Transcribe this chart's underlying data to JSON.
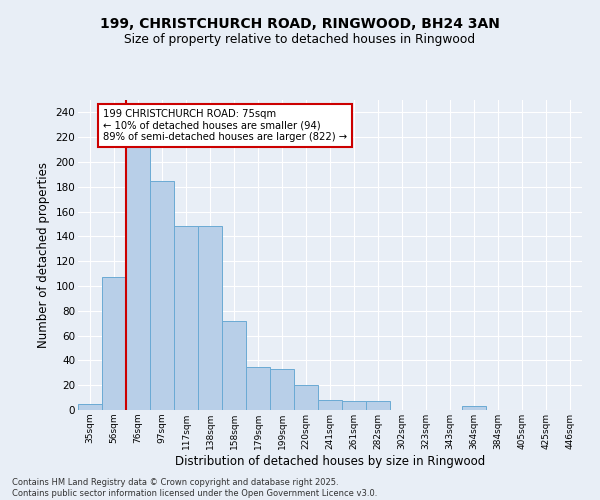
{
  "title_line1": "199, CHRISTCHURCH ROAD, RINGWOOD, BH24 3AN",
  "title_line2": "Size of property relative to detached houses in Ringwood",
  "xlabel": "Distribution of detached houses by size in Ringwood",
  "ylabel": "Number of detached properties",
  "categories": [
    "35sqm",
    "56sqm",
    "76sqm",
    "97sqm",
    "117sqm",
    "138sqm",
    "158sqm",
    "179sqm",
    "199sqm",
    "220sqm",
    "241sqm",
    "261sqm",
    "282sqm",
    "302sqm",
    "323sqm",
    "343sqm",
    "364sqm",
    "384sqm",
    "405sqm",
    "425sqm",
    "446sqm"
  ],
  "values": [
    5,
    107,
    220,
    185,
    148,
    148,
    72,
    35,
    33,
    20,
    8,
    7,
    7,
    0,
    0,
    0,
    3,
    0,
    0,
    0,
    0
  ],
  "bar_color": "#b8cfe8",
  "bar_edge_color": "#6aaad4",
  "vline_color": "#cc0000",
  "vline_x_index": 1.5,
  "annotation_text": "199 CHRISTCHURCH ROAD: 75sqm\n← 10% of detached houses are smaller (94)\n89% of semi-detached houses are larger (822) →",
  "annotation_box_color": "#ffffff",
  "annotation_edge_color": "#cc0000",
  "ylim": [
    0,
    250
  ],
  "yticks": [
    0,
    20,
    40,
    60,
    80,
    100,
    120,
    140,
    160,
    180,
    200,
    220,
    240
  ],
  "bg_color": "#e8eef6",
  "grid_color": "#ffffff",
  "footer_text": "Contains HM Land Registry data © Crown copyright and database right 2025.\nContains public sector information licensed under the Open Government Licence v3.0."
}
